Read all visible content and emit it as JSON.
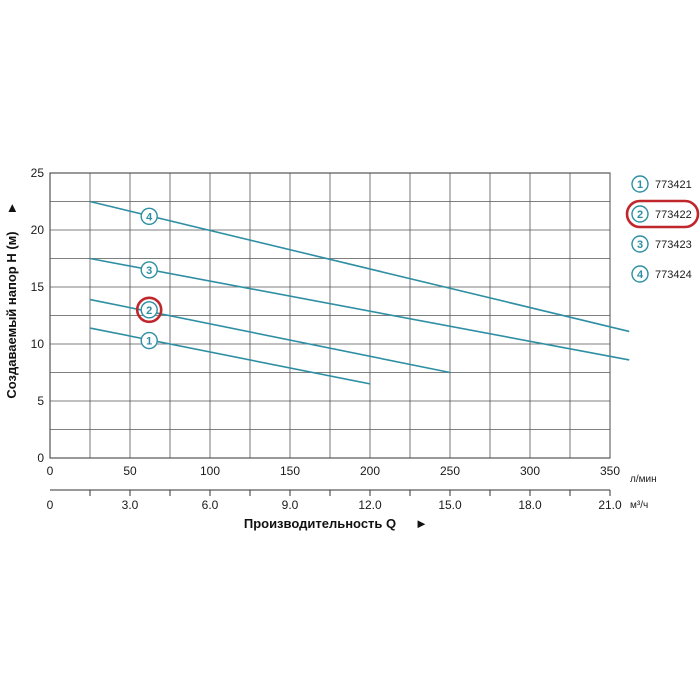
{
  "chart_data": {
    "type": "line",
    "xlabel": "Производительность Q",
    "ylabel": "Создаваемый напор Н (м)",
    "x_unit_primary": "л/мин",
    "x_unit_secondary": "м³/ч",
    "xlim": [
      0,
      350
    ],
    "ylim": [
      0,
      25
    ],
    "x_ticks": [
      0,
      50,
      100,
      150,
      200,
      250,
      300,
      350
    ],
    "x_tick_labels": [
      "0",
      "50",
      "100",
      "150",
      "200",
      "250",
      "300",
      "350"
    ],
    "x2_tick_labels": [
      "0",
      "3.0",
      "6.0",
      "9.0",
      "12.0",
      "15.0",
      "18.0",
      "21.0"
    ],
    "y_ticks": [
      0,
      5,
      10,
      15,
      20,
      25
    ],
    "y_tick_labels": [
      "0",
      "5",
      "10",
      "15",
      "20",
      "25"
    ],
    "grid": true,
    "legend_position": "right",
    "line_color": "#2e8fa3",
    "highlight_color": "#c0272d",
    "series": [
      {
        "name": "773421",
        "marker": "1",
        "highlighted": false,
        "x": [
          25,
          200
        ],
        "y": [
          11.4,
          6.5
        ],
        "marker_at": [
          62,
          10.3
        ]
      },
      {
        "name": "773422",
        "marker": "2",
        "highlighted": true,
        "x": [
          25,
          250
        ],
        "y": [
          13.9,
          7.5
        ],
        "marker_at": [
          62,
          13.0
        ]
      },
      {
        "name": "773423",
        "marker": "3",
        "highlighted": false,
        "x": [
          25,
          362
        ],
        "y": [
          17.5,
          8.6
        ],
        "marker_at": [
          62,
          16.5
        ]
      },
      {
        "name": "773424",
        "marker": "4",
        "highlighted": false,
        "x": [
          25,
          362
        ],
        "y": [
          22.5,
          11.1
        ],
        "marker_at": [
          62,
          21.2
        ]
      }
    ]
  }
}
